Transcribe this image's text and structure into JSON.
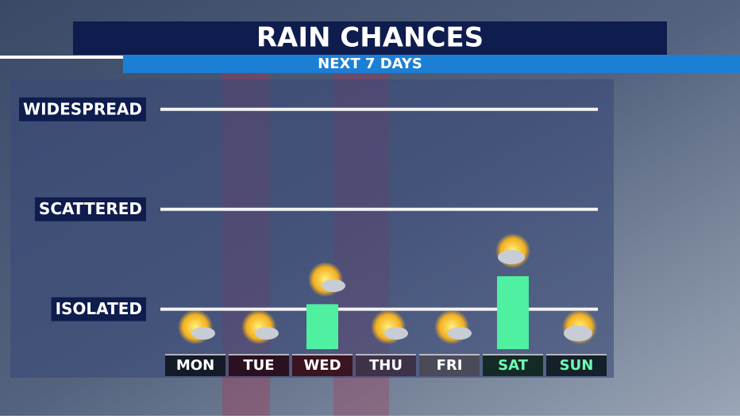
{
  "chart_data": {
    "type": "bar",
    "title": "RAIN CHANCES",
    "subtitle": "NEXT 7 DAYS",
    "categories": [
      "MON",
      "TUE",
      "WED",
      "THU",
      "FRI",
      "SAT",
      "SUN"
    ],
    "values": [
      0.6,
      0.6,
      1.05,
      0.6,
      0.6,
      1.33,
      0.6
    ],
    "color": "#4ff0a0",
    "label_backgrounds": [
      "#141a26",
      "#2a1020",
      "#3a1420",
      "#3e3248",
      "#4a4a58",
      "#142a26",
      "#14202a"
    ],
    "label_colors": [
      "#ffffff",
      "#ffffff",
      "#ffffff",
      "#ffffff",
      "#ffffff",
      "#6fffb0",
      "#6fffb0"
    ],
    "ylim": [
      0.6,
      3.3
    ],
    "yticks": [
      {
        "value": 1,
        "label": "ISOLATED"
      },
      {
        "value": 2,
        "label": "SCATTERED"
      },
      {
        "value": 3,
        "label": "WIDESPREAD"
      }
    ],
    "grid": true
  }
}
